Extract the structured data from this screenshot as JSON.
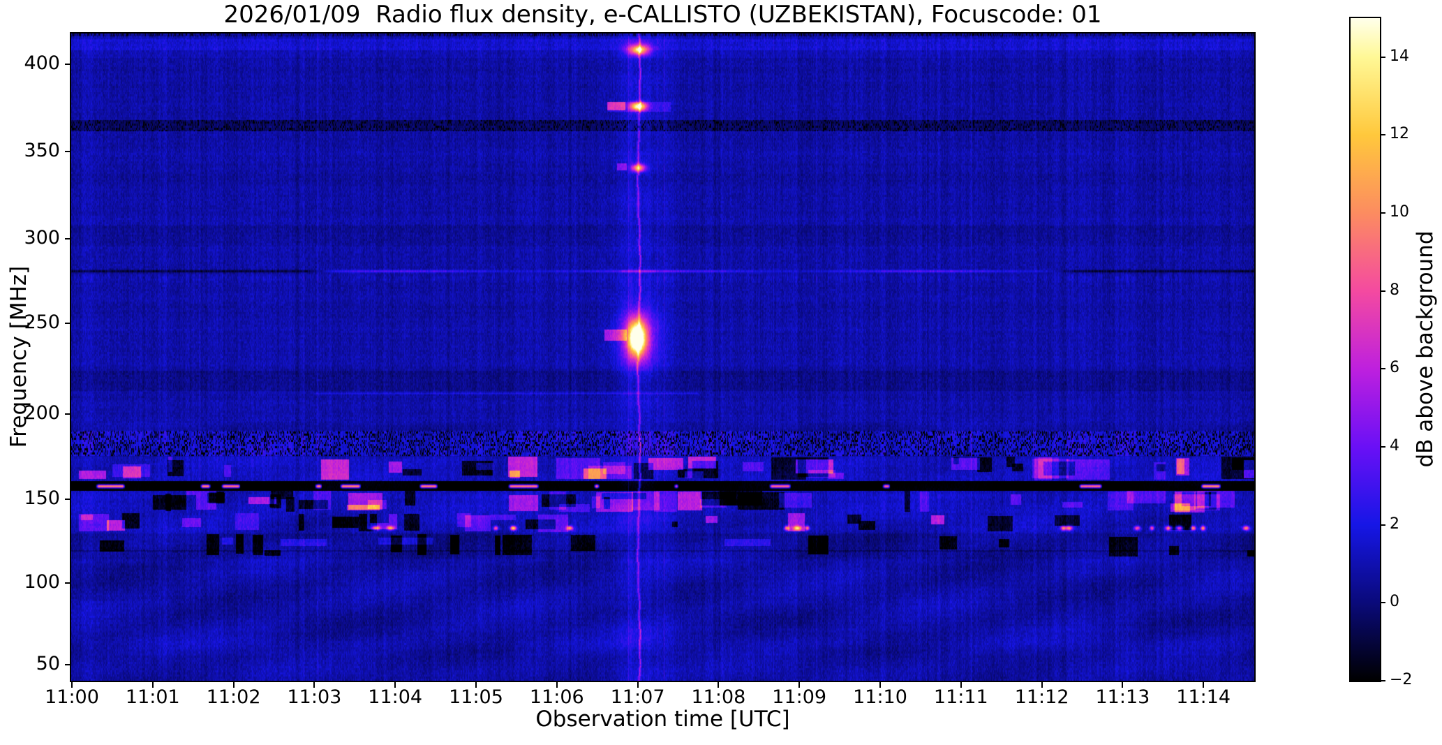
{
  "chart_data": {
    "type": "heatmap",
    "title": "2026/01/09  Radio flux density, e-CALLISTO (UZBEKISTAN), Focuscode: 01",
    "xlabel": "Observation time [UTC]",
    "ylabel": "Frequency [MHz]",
    "x_ticks": [
      "11:00",
      "11:01",
      "11:02",
      "11:03",
      "11:04",
      "11:05",
      "11:06",
      "11:07",
      "11:08",
      "11:09",
      "11:10",
      "11:11",
      "11:12",
      "11:13",
      "11:14"
    ],
    "x_range_minutes_after_1100_utc": [
      0,
      14.63
    ],
    "y_ticks_mhz": [
      400,
      350,
      300,
      250,
      200,
      150,
      100,
      50
    ],
    "y_range_mhz": [
      43,
      417
    ],
    "grid": false,
    "background_level_db": 0.6,
    "colorbar": {
      "label": "dB above background",
      "ticks": [
        14,
        12,
        10,
        8,
        6,
        4,
        2,
        0,
        -2
      ],
      "range_db": [
        -2,
        15
      ],
      "gradient_stops": {
        "-2": "#000000",
        "0": "#0a0a7a",
        "2": "#1616e6",
        "4": "#6a10f6",
        "6": "#be20de",
        "8": "#f44aa0",
        "10": "#fc8c60",
        "12": "#ffc83c",
        "14": "#fff896",
        "15": "#ffffeb"
      }
    },
    "features": {
      "burst": {
        "time_utc": "11:07",
        "column_t": 7.01,
        "column_enhancement_db": 3.4,
        "blobs": [
          {
            "t": 7.012,
            "f": 408,
            "peak": 9.5,
            "sx": 0.14,
            "sy": 3.2
          },
          {
            "t": 7.005,
            "f": 376,
            "peak": 12.3,
            "sx": 0.1,
            "sy": 2.6
          },
          {
            "t": 7.005,
            "f": 341,
            "peak": 9.8,
            "sx": 0.085,
            "sy": 2.2
          },
          {
            "t": 6.99,
            "f": 242,
            "peak": 13.2,
            "sx": 0.11,
            "sy": 9.0
          }
        ]
      },
      "lines": [
        {
          "freq_mhz": 281,
          "dark_db": -1.9,
          "bright_db": 2.3,
          "bright_t": [
            2.87,
            12.43
          ]
        },
        {
          "freq_mhz": 211.5,
          "db": 1.1,
          "t": [
            3.0,
            7.75
          ]
        }
      ],
      "rfi_bands": [
        {
          "freq_mhz": [
            404,
            417
          ],
          "boost_db": 0.25,
          "style": "streak"
        },
        {
          "freq_mhz": [
            408,
            414
          ],
          "boost_db": 0.5,
          "style": "streak"
        },
        {
          "freq_mhz": [
            362,
            368
          ],
          "boost_db": -1.3,
          "style": "speckle"
        },
        {
          "freq_mhz": [
            296,
            308
          ],
          "boost_db": -0.3,
          "style": "smooth"
        },
        {
          "freq_mhz": [
            213,
            224
          ],
          "boost_db": -0.45,
          "style": "smooth"
        },
        {
          "freq_mhz": [
            176,
            190
          ],
          "boost_db": -0.6,
          "style": "static"
        },
        {
          "freq_mhz": [
            161,
            175
          ],
          "boost_db": 0.5,
          "style": "blocks"
        },
        {
          "freq_mhz": [
            155.5,
            160.5
          ],
          "boost_db": -2.8,
          "style": "blackline"
        },
        {
          "freq_mhz": [
            142,
            155
          ],
          "boost_db": 0.45,
          "style": "blocks"
        },
        {
          "freq_mhz": [
            130.5,
            141.5
          ],
          "boost_db": 0.35,
          "style": "blocks-sparse"
        },
        {
          "freq_mhz": [
            115,
            129
          ],
          "boost_db": -0.2,
          "style": "blobs-dark"
        }
      ],
      "pink_segments_157mhz": [
        [
          0.3,
          0.65
        ],
        [
          1.59,
          1.71
        ],
        [
          1.85,
          2.08
        ],
        [
          3.01,
          3.09
        ],
        [
          3.32,
          3.57
        ],
        [
          4.3,
          4.52
        ],
        [
          5.4,
          5.77
        ],
        [
          6.46,
          6.52
        ],
        [
          7.45,
          7.5
        ],
        [
          8.63,
          8.89
        ],
        [
          10.03,
          10.12
        ],
        [
          12.46,
          12.74
        ],
        [
          13.97,
          14.21
        ]
      ],
      "pink_dots_133mhz": [
        3.76,
        3.94,
        5.25,
        5.46,
        6.16,
        8.85,
        8.98,
        9.1,
        12.27,
        12.34,
        13.18,
        13.36,
        13.57,
        13.7,
        13.87,
        13.99,
        14.53
      ],
      "orange_dot_t": 5.46
    }
  }
}
